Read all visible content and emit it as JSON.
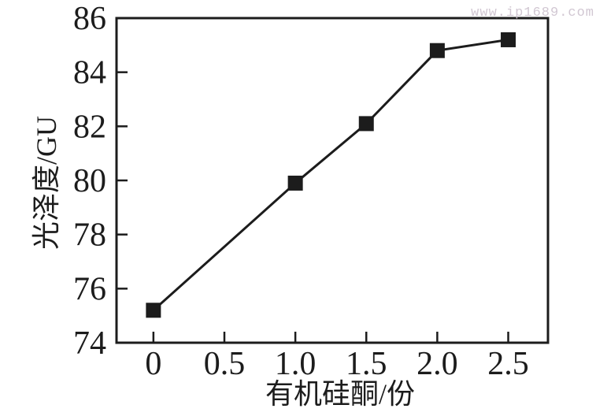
{
  "watermark": {
    "text": "www.ip1689.com",
    "color": "#cdc1ce"
  },
  "chart_data": {
    "type": "line",
    "title": "",
    "xlabel": "有机硅酮/份",
    "ylabel": "光泽度/GU",
    "series": [
      {
        "name": "光泽度",
        "x": [
          0,
          1.0,
          1.5,
          2.0,
          2.5
        ],
        "y": [
          75.2,
          79.9,
          82.1,
          84.8,
          85.2
        ],
        "marker": "filled-square",
        "color": "#1c1c1c"
      }
    ],
    "xlim": [
      -0.26,
      2.78
    ],
    "ylim": [
      74,
      86
    ],
    "xticks": [
      0,
      0.5,
      1.0,
      1.5,
      2.0,
      2.5
    ],
    "xtick_labels": [
      "0",
      "0.5",
      "1.0",
      "1.5",
      "2.0",
      "2.5"
    ],
    "yticks": [
      74,
      76,
      78,
      80,
      82,
      84,
      86
    ],
    "ytick_labels": [
      "74",
      "76",
      "78",
      "80",
      "82",
      "84",
      "86"
    ],
    "grid": false,
    "legend": false,
    "axis_color": "#1c1c1c",
    "background": "#ffffff"
  }
}
